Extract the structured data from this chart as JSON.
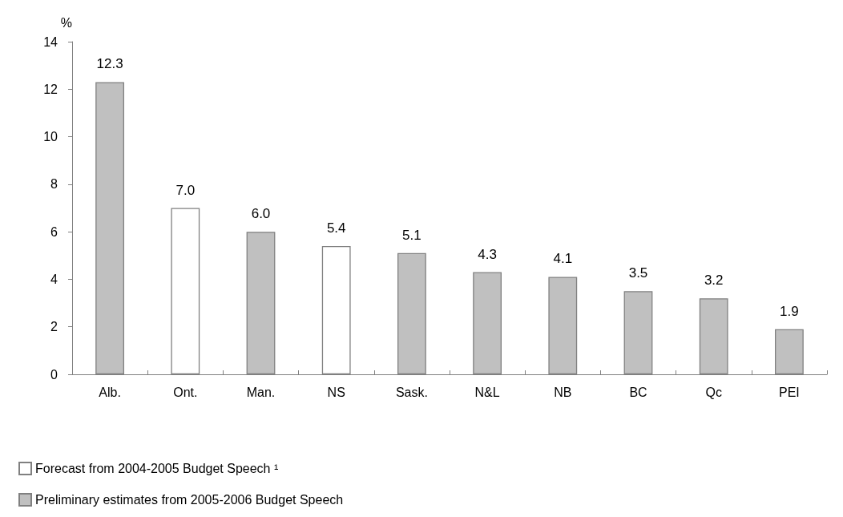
{
  "chart_data": {
    "type": "bar",
    "ylabel": "%",
    "categories": [
      "Alb.",
      "Ont.",
      "Man.",
      "NS",
      "Sask.",
      "N&L",
      "NB",
      "BC",
      "Qc",
      "PEI"
    ],
    "series": [
      {
        "name": "Forecast from 2004-2005 Budget Speech ¹",
        "color": "#ffffff",
        "values": [
          null,
          7.0,
          null,
          5.4,
          null,
          null,
          null,
          null,
          null,
          null
        ],
        "value_labels": [
          null,
          "7.0",
          null,
          "5.4",
          null,
          null,
          null,
          null,
          null,
          null
        ]
      },
      {
        "name": "Preliminary estimates from 2005-2006 Budget Speech",
        "color": "#c0c0c0",
        "values": [
          12.3,
          null,
          6.0,
          null,
          5.1,
          4.3,
          4.1,
          3.5,
          3.2,
          1.9
        ],
        "value_labels": [
          "12.3",
          null,
          "6.0",
          null,
          "5.1",
          "4.3",
          "4.1",
          "3.5",
          "3.2",
          "1.9"
        ]
      }
    ],
    "ylim": [
      0,
      14
    ],
    "yticks": [
      0,
      2,
      4,
      6,
      8,
      10,
      12,
      14
    ],
    "grid": false,
    "legend": "bottom left"
  }
}
